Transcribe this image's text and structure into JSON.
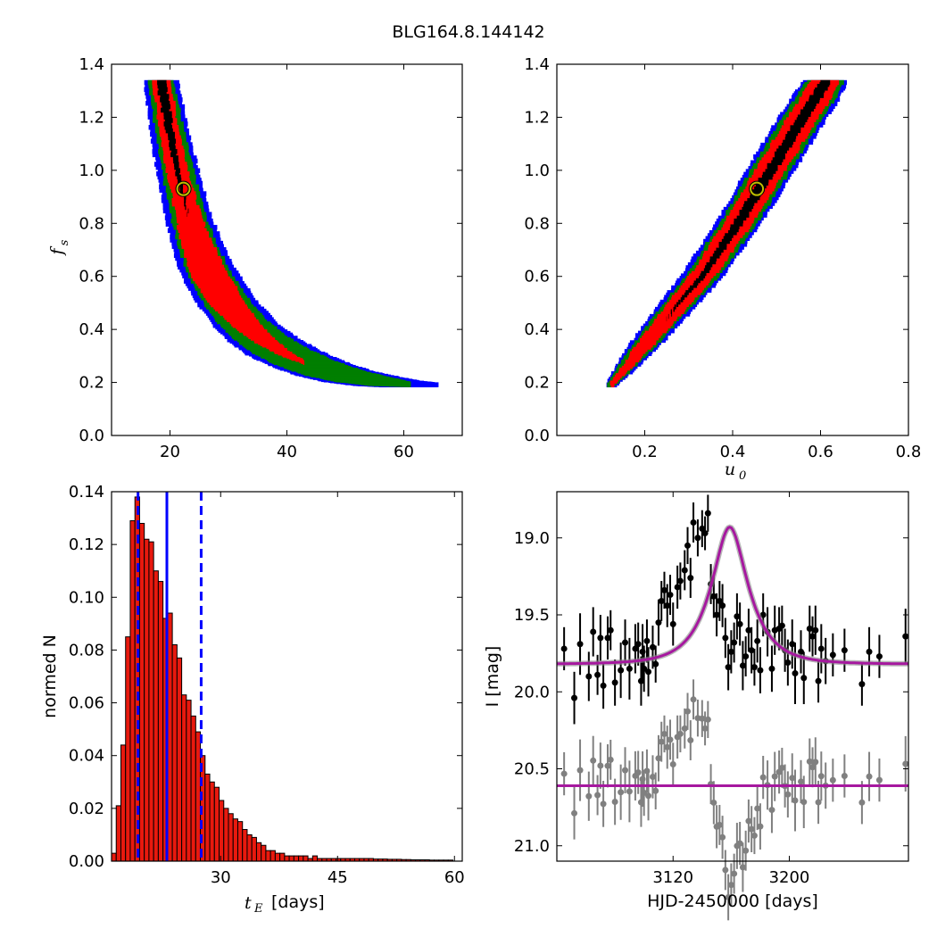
{
  "title": "BLG164.8.144142",
  "colors": {
    "blue": "#0000ff",
    "green": "#007f00",
    "red": "#ff0000",
    "black": "#000000",
    "marker_ring": "#bfbf00",
    "hist_fill": "#e8190e",
    "model_line": "#a6189f",
    "grey_points": "#808080"
  },
  "chart_data": [
    {
      "id": "tE-fs",
      "type": "heatmap",
      "xlabel": "",
      "ylabel": "f",
      "ylabel_sub": "s",
      "xlim": [
        10,
        70
      ],
      "ylim": [
        0.0,
        1.4
      ],
      "xticks": [
        20,
        40,
        60
      ],
      "yticks": [
        0.0,
        0.2,
        0.4,
        0.6,
        0.8,
        1.0,
        1.2,
        1.4
      ],
      "tick_labels_x": [
        "20",
        "40",
        "60"
      ],
      "tick_labels_y": [
        "0.0",
        "0.2",
        "0.4",
        "0.6",
        "0.8",
        "1.0",
        "1.2",
        "1.4"
      ],
      "levels": [
        "blue",
        "green",
        "red",
        "black"
      ],
      "best_fit": {
        "x": 22.3,
        "y": 0.93
      },
      "ridge": [
        [
          18.6,
          1.33
        ],
        [
          19.5,
          1.2
        ],
        [
          20.6,
          1.07
        ],
        [
          21.8,
          0.95
        ],
        [
          23.2,
          0.82
        ],
        [
          25.0,
          0.7
        ],
        [
          27.2,
          0.59
        ],
        [
          29.8,
          0.5
        ],
        [
          32.8,
          0.42
        ],
        [
          36.0,
          0.36
        ],
        [
          39.5,
          0.31
        ],
        [
          43.5,
          0.27
        ],
        [
          48.0,
          0.235
        ],
        [
          53.0,
          0.21
        ],
        [
          57.5,
          0.195
        ],
        [
          61.0,
          0.19
        ]
      ],
      "band_halfwidths": {
        "blue": [
          3.0,
          3.2,
          3.5,
          3.7,
          4.0,
          4.5,
          5.0,
          5.2,
          5.5,
          6.0,
          6.5,
          6.6,
          6.8,
          7.0,
          6.2,
          5.0
        ],
        "green": [
          2.2,
          2.4,
          2.6,
          2.8,
          3.0,
          3.4,
          3.8,
          4.0,
          4.3,
          4.6,
          5.0,
          5.2,
          5.3,
          5.0,
          3.5,
          0.0
        ],
        "red": [
          1.6,
          1.6,
          1.8,
          1.9,
          2.2,
          2.8,
          3.2,
          3.0,
          2.4,
          1.8,
          1.0,
          0.0,
          0.0,
          0.0,
          0.0,
          0.0
        ],
        "black": [
          0.8,
          0.7,
          0.5,
          0.3,
          0.0,
          0.0,
          0.0,
          0.0,
          0.0,
          0.0,
          0.0,
          0.0,
          0.0,
          0.0,
          0.0,
          0.0
        ]
      }
    },
    {
      "id": "u0-fs",
      "type": "heatmap",
      "xlabel": "u",
      "xlabel_sub": "0",
      "ylabel": "",
      "xlim": [
        0.0,
        0.8
      ],
      "ylim": [
        0.0,
        1.4
      ],
      "xticks": [
        0.2,
        0.4,
        0.6,
        0.8
      ],
      "yticks": [
        0.0,
        0.2,
        0.4,
        0.6,
        0.8,
        1.0,
        1.2,
        1.4
      ],
      "tick_labels_x": [
        "0.2",
        "0.4",
        "0.6",
        "0.8"
      ],
      "tick_labels_y": [
        "0.0",
        "0.2",
        "0.4",
        "0.6",
        "0.8",
        "1.0",
        "1.2",
        "1.4"
      ],
      "levels": [
        "blue",
        "green",
        "red",
        "black"
      ],
      "best_fit": {
        "x": 0.455,
        "y": 0.93
      },
      "ridge": [
        [
          0.125,
          0.19
        ],
        [
          0.16,
          0.26
        ],
        [
          0.2,
          0.34
        ],
        [
          0.245,
          0.43
        ],
        [
          0.29,
          0.52
        ],
        [
          0.335,
          0.61
        ],
        [
          0.38,
          0.72
        ],
        [
          0.425,
          0.83
        ],
        [
          0.465,
          0.94
        ],
        [
          0.505,
          1.05
        ],
        [
          0.545,
          1.16
        ],
        [
          0.585,
          1.26
        ],
        [
          0.61,
          1.33
        ]
      ],
      "band_halfwidths": {
        "blue": [
          0.012,
          0.025,
          0.035,
          0.04,
          0.045,
          0.048,
          0.05,
          0.052,
          0.054,
          0.055,
          0.055,
          0.055,
          0.05
        ],
        "green": [
          0.008,
          0.018,
          0.026,
          0.03,
          0.034,
          0.037,
          0.04,
          0.042,
          0.044,
          0.045,
          0.045,
          0.045,
          0.042
        ],
        "red": [
          0.004,
          0.01,
          0.018,
          0.022,
          0.026,
          0.028,
          0.03,
          0.032,
          0.033,
          0.034,
          0.034,
          0.034,
          0.032
        ],
        "black": [
          0.0,
          0.0,
          0.0,
          0.0,
          0.003,
          0.006,
          0.009,
          0.011,
          0.012,
          0.012,
          0.012,
          0.012,
          0.011
        ]
      }
    },
    {
      "id": "tE-hist",
      "type": "bar",
      "xlabel_math": "t",
      "xlabel_sub": "E",
      "xlabel": "[days]",
      "ylabel": "normed N",
      "xlim": [
        16,
        61
      ],
      "ylim": [
        0.0,
        0.14
      ],
      "xticks": [
        30,
        45,
        60
      ],
      "yticks": [
        0.0,
        0.02,
        0.04,
        0.06,
        0.08,
        0.1,
        0.12,
        0.14
      ],
      "tick_labels_x": [
        "30",
        "45",
        "60"
      ],
      "tick_labels_y": [
        "0.00",
        "0.02",
        "0.04",
        "0.06",
        "0.08",
        "0.10",
        "0.12",
        "0.14"
      ],
      "bin_start": 16.0,
      "bin_width": 0.6,
      "values": [
        0.003,
        0.021,
        0.044,
        0.085,
        0.129,
        0.138,
        0.128,
        0.122,
        0.121,
        0.11,
        0.106,
        0.092,
        0.094,
        0.082,
        0.077,
        0.063,
        0.061,
        0.055,
        0.049,
        0.04,
        0.033,
        0.03,
        0.028,
        0.023,
        0.02,
        0.018,
        0.016,
        0.015,
        0.012,
        0.01,
        0.009,
        0.007,
        0.006,
        0.004,
        0.004,
        0.003,
        0.003,
        0.002,
        0.002,
        0.002,
        0.002,
        0.002,
        0.001,
        0.002,
        0.001,
        0.001,
        0.001,
        0.001,
        0.001,
        0.001,
        0.001,
        0.001,
        0.001,
        0.001,
        0.001,
        0.001,
        0.0008,
        0.0008,
        0.0008,
        0.0007,
        0.0007,
        0.0007,
        0.0006,
        0.0006,
        0.0005,
        0.0005,
        0.0005,
        0.0005,
        0.0004,
        0.0004,
        0.0004,
        0.0004,
        0.0004
      ],
      "median": 23.1,
      "lower": 19.4,
      "upper": 27.5
    },
    {
      "id": "lightcurve",
      "type": "scatter",
      "xlabel": "HJD-2450000 [days]",
      "ylabel": "I [mag]",
      "xlim": [
        3040,
        3282
      ],
      "ylim": [
        21.1,
        18.7
      ],
      "xticks": [
        3120,
        3200
      ],
      "yticks": [
        19.0,
        19.5,
        20.0,
        20.5,
        21.0
      ],
      "tick_labels_x": [
        "3120",
        "3200"
      ],
      "tick_labels_y": [
        "19.0",
        "19.5",
        "20.0",
        "20.5",
        "21.0"
      ],
      "model": {
        "t0": 3159,
        "tE": 23.1,
        "u0": 0.455,
        "fs": 0.93,
        "base": 19.82,
        "residual_offset": 20.61
      },
      "points": [
        [
          3045,
          19.72,
          0.14
        ],
        [
          3052,
          20.04,
          0.17
        ],
        [
          3056,
          19.69,
          0.2
        ],
        [
          3062,
          19.9,
          0.16
        ],
        [
          3065,
          19.61,
          0.16
        ],
        [
          3068,
          19.89,
          0.13
        ],
        [
          3070,
          19.65,
          0.15
        ],
        [
          3072,
          19.96,
          0.15
        ],
        [
          3075,
          19.65,
          0.14
        ],
        [
          3077,
          19.6,
          0.13
        ],
        [
          3080,
          19.94,
          0.15
        ],
        [
          3084,
          19.86,
          0.18
        ],
        [
          3087,
          19.68,
          0.15
        ],
        [
          3090,
          19.85,
          0.2
        ],
        [
          3094,
          19.72,
          0.16
        ],
        [
          3096,
          19.69,
          0.14
        ],
        [
          3098,
          19.93,
          0.16
        ],
        [
          3099,
          19.74,
          0.18
        ],
        [
          3100,
          19.85,
          0.15
        ],
        [
          3102,
          19.67,
          0.14
        ],
        [
          3103,
          19.87,
          0.16
        ],
        [
          3106,
          19.71,
          0.14
        ],
        [
          3108,
          19.82,
          0.12
        ],
        [
          3110,
          19.55,
          0.15
        ],
        [
          3112,
          19.41,
          0.13
        ],
        [
          3114,
          19.34,
          0.12
        ],
        [
          3116,
          19.44,
          0.14
        ],
        [
          3118,
          19.37,
          0.13
        ],
        [
          3120,
          19.56,
          0.14
        ],
        [
          3123,
          19.32,
          0.14
        ],
        [
          3125,
          19.28,
          0.12
        ],
        [
          3128,
          19.21,
          0.13
        ],
        [
          3130,
          19.05,
          0.12
        ],
        [
          3132,
          19.26,
          0.13
        ],
        [
          3134,
          18.9,
          0.13
        ],
        [
          3137,
          19.0,
          0.12
        ],
        [
          3140,
          18.94,
          0.12
        ],
        [
          3142,
          18.97,
          0.11
        ],
        [
          3144,
          18.84,
          0.12
        ],
        [
          3146,
          19.3,
          0.13
        ],
        [
          3148,
          19.38,
          0.14
        ],
        [
          3150,
          19.5,
          0.14
        ],
        [
          3152,
          19.41,
          0.13
        ],
        [
          3154,
          19.44,
          0.14
        ],
        [
          3156,
          19.65,
          0.13
        ],
        [
          3158,
          19.84,
          0.15
        ],
        [
          3160,
          19.74,
          0.14
        ],
        [
          3162,
          19.68,
          0.13
        ],
        [
          3164,
          19.51,
          0.15
        ],
        [
          3166,
          19.56,
          0.14
        ],
        [
          3168,
          19.83,
          0.16
        ],
        [
          3170,
          19.77,
          0.13
        ],
        [
          3172,
          19.6,
          0.14
        ],
        [
          3174,
          19.73,
          0.15
        ],
        [
          3176,
          19.84,
          0.12
        ],
        [
          3178,
          19.67,
          0.14
        ],
        [
          3180,
          19.86,
          0.15
        ],
        [
          3182,
          19.5,
          0.14
        ],
        [
          3185,
          19.61,
          0.16
        ],
        [
          3188,
          19.85,
          0.15
        ],
        [
          3190,
          19.6,
          0.16
        ],
        [
          3193,
          19.59,
          0.14
        ],
        [
          3195,
          19.57,
          0.13
        ],
        [
          3197,
          19.73,
          0.14
        ],
        [
          3199,
          19.81,
          0.15
        ],
        [
          3202,
          19.69,
          0.16
        ],
        [
          3204,
          19.88,
          0.2
        ],
        [
          3208,
          19.74,
          0.14
        ],
        [
          3210,
          19.91,
          0.17
        ],
        [
          3214,
          19.59,
          0.15
        ],
        [
          3216,
          19.64,
          0.13
        ],
        [
          3218,
          19.6,
          0.16
        ],
        [
          3220,
          19.93,
          0.14
        ],
        [
          3222,
          19.72,
          0.16
        ],
        [
          3225,
          19.8,
          0.15
        ],
        [
          3230,
          19.76,
          0.14
        ],
        [
          3238,
          19.73,
          0.14
        ],
        [
          3250,
          19.95,
          0.14
        ],
        [
          3255,
          19.74,
          0.16
        ],
        [
          3262,
          19.77,
          0.14
        ],
        [
          3280,
          19.64,
          0.18
        ]
      ]
    }
  ]
}
